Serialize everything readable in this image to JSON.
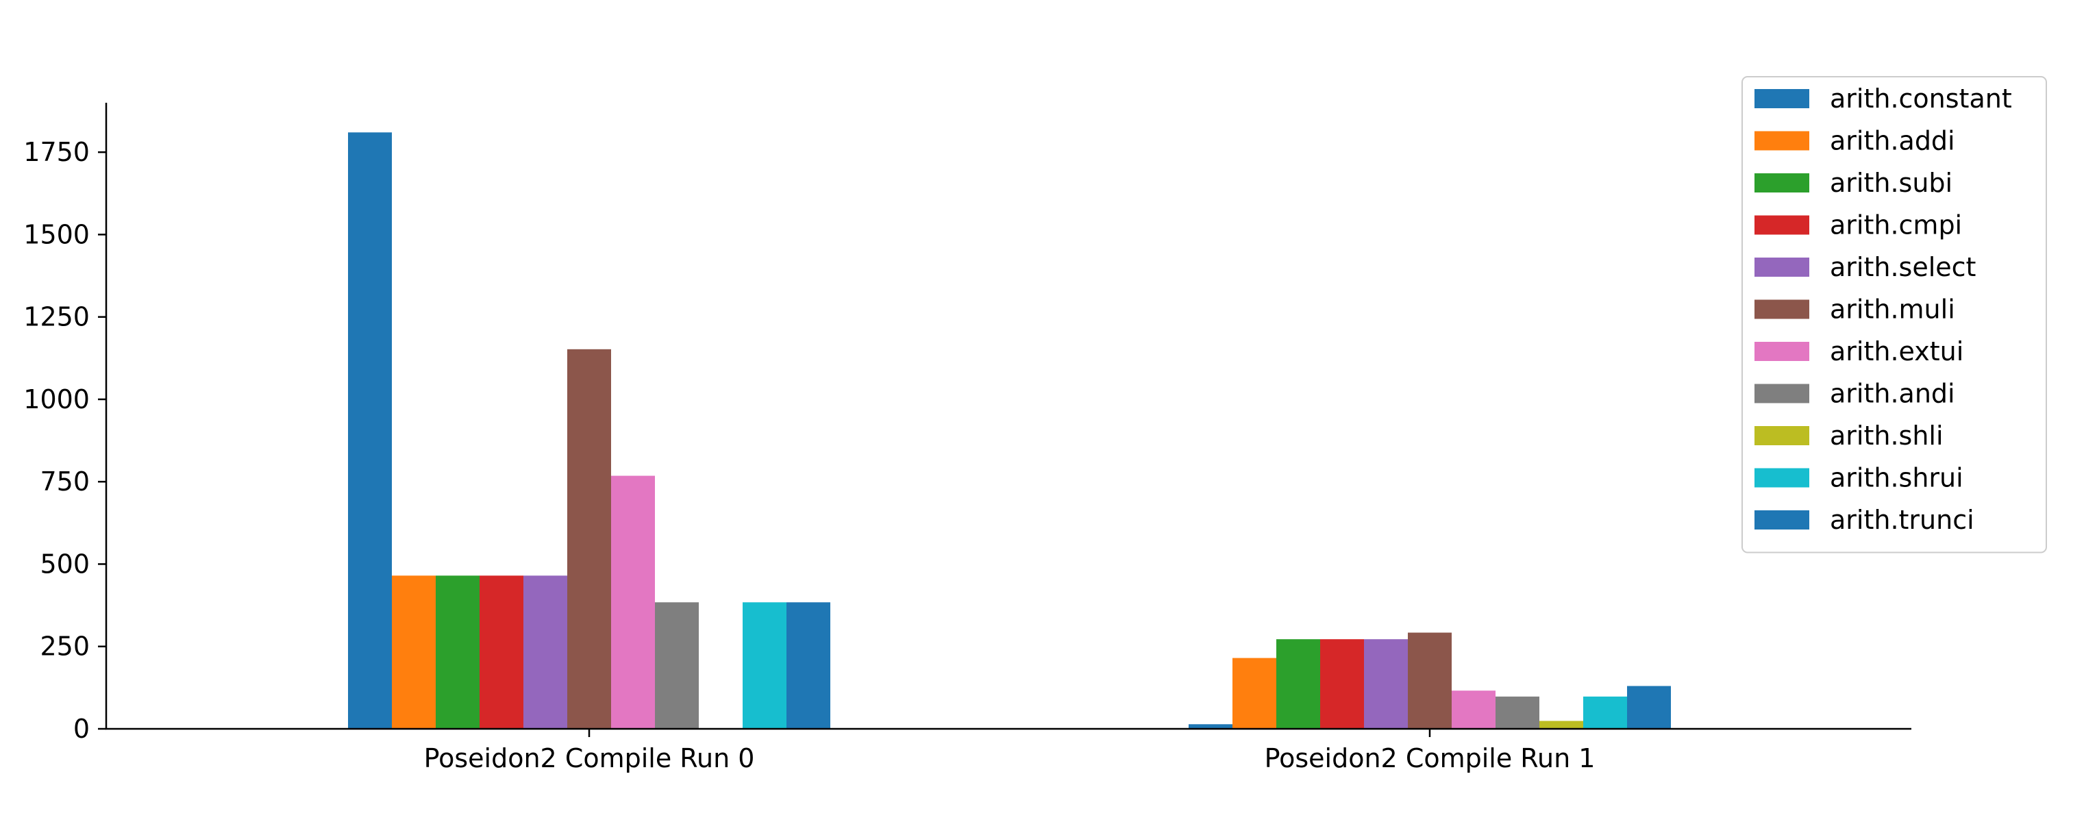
{
  "chart_data": {
    "type": "bar",
    "title": "",
    "xlabel": "",
    "ylabel": "",
    "categories": [
      "Poseidon2 Compile Run 0",
      "Poseidon2 Compile Run 1"
    ],
    "ylim": [
      0,
      1900
    ],
    "yticks": [
      0,
      250,
      500,
      750,
      1000,
      1250,
      1500,
      1750
    ],
    "grid": false,
    "legend_position": "top-right",
    "series": [
      {
        "name": "arith.constant",
        "color": "#1f77b4",
        "values": [
          1810,
          14
        ]
      },
      {
        "name": "arith.addi",
        "color": "#ff7f0e",
        "values": [
          465,
          215
        ]
      },
      {
        "name": "arith.subi",
        "color": "#2ca02c",
        "values": [
          465,
          272
        ]
      },
      {
        "name": "arith.cmpi",
        "color": "#d62728",
        "values": [
          465,
          272
        ]
      },
      {
        "name": "arith.select",
        "color": "#9467bd",
        "values": [
          465,
          272
        ]
      },
      {
        "name": "arith.muli",
        "color": "#8c564b",
        "values": [
          1152,
          292
        ]
      },
      {
        "name": "arith.extui",
        "color": "#e377c2",
        "values": [
          768,
          116
        ]
      },
      {
        "name": "arith.andi",
        "color": "#7f7f7f",
        "values": [
          384,
          98
        ]
      },
      {
        "name": "arith.shli",
        "color": "#bcbd22",
        "values": [
          0,
          24
        ]
      },
      {
        "name": "arith.shrui",
        "color": "#17becf",
        "values": [
          384,
          98
        ]
      },
      {
        "name": "arith.trunci",
        "color": "#1f77b4",
        "values": [
          384,
          130
        ]
      }
    ]
  }
}
